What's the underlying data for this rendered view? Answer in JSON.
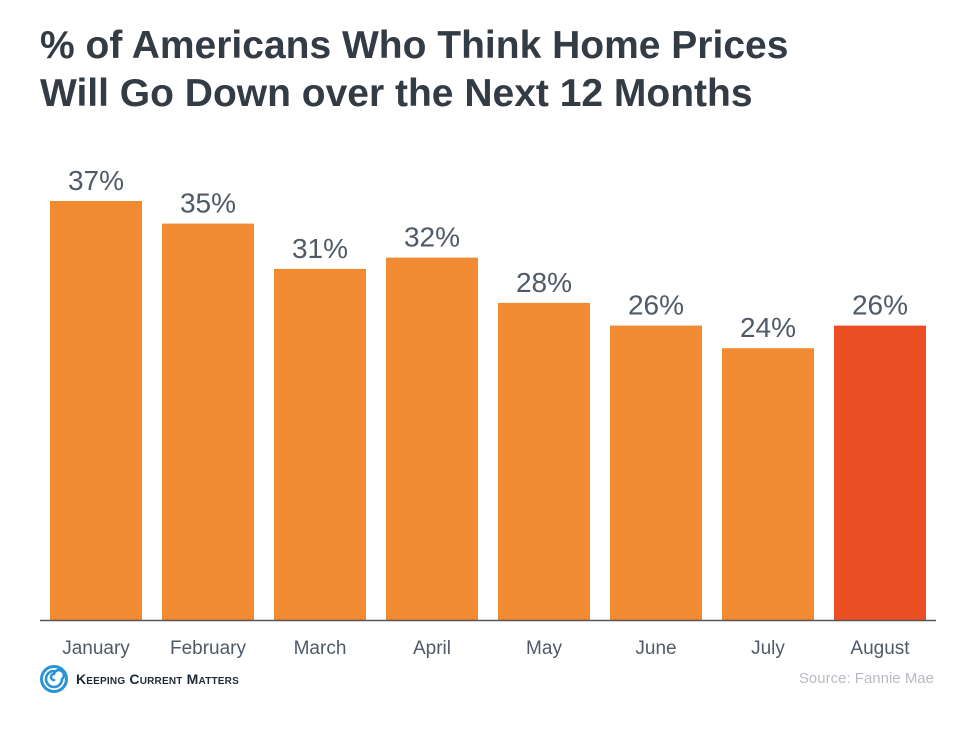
{
  "title_lines": [
    "% of Americans Who Think Home Prices",
    "Will Go Down over the Next 12 Months"
  ],
  "colors": {
    "bar": "#f08a33",
    "highlight_bar": "#e94e24",
    "title": "#333b44",
    "label": "#505a66",
    "axis": "#555555",
    "source": "#b8bcc2",
    "logo_blue": "#2a93d5"
  },
  "chart_data": {
    "type": "bar",
    "categories": [
      "January",
      "February",
      "March",
      "April",
      "May",
      "June",
      "July",
      "August"
    ],
    "values": [
      37,
      35,
      31,
      32,
      28,
      26,
      24,
      26
    ],
    "data_labels": [
      "37%",
      "35%",
      "31%",
      "32%",
      "28%",
      "26%",
      "24%",
      "26%"
    ],
    "highlight_index": 7,
    "ylim": [
      0,
      37
    ],
    "grid": false,
    "legend": "none"
  },
  "source": "Source: Fannie Mae",
  "logo": {
    "icon": "kcm-swirl-icon",
    "text": "Keeping Current Matters"
  }
}
